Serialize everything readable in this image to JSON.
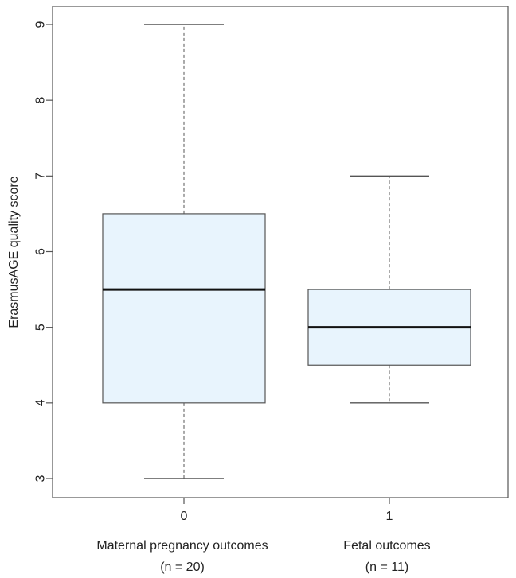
{
  "chart_data": {
    "type": "box",
    "ylabel": "ErasmusAGE quality score",
    "ylim": [
      3,
      9
    ],
    "yticks": [
      "3",
      "4",
      "5",
      "6",
      "7",
      "8",
      "9"
    ],
    "categories": [
      "0",
      "1"
    ],
    "group_labels": [
      {
        "line1": "Maternal pregnancy outcomes",
        "line2": "(n = 20)"
      },
      {
        "line1": "Fetal outcomes",
        "line2": "(n = 11)"
      }
    ],
    "boxes": [
      {
        "category": "0",
        "min": 3,
        "q1": 4,
        "median": 5.5,
        "q3": 6.5,
        "max": 9
      },
      {
        "category": "1",
        "min": 4,
        "q1": 4.5,
        "median": 5,
        "q3": 5.5,
        "max": 7
      }
    ],
    "colors": {
      "box_fill": "#e8f4fd",
      "box_stroke": "#555555",
      "median": "#111111",
      "whisker": "#555555",
      "frame": "#555555"
    }
  }
}
